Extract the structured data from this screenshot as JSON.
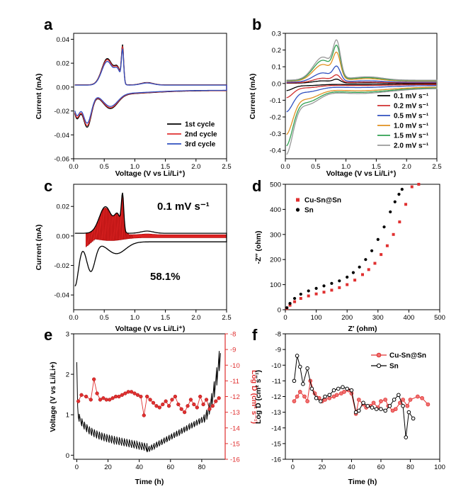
{
  "chart_data": [
    {
      "id": "a",
      "type": "line",
      "panel_label": "a",
      "xlabel": "Voltage (V vs Li/Li⁺)",
      "ylabel": "Current (mA)",
      "xlim": [
        0,
        2.5
      ],
      "ylim": [
        -0.06,
        0.045
      ],
      "xticks": [
        "0.0",
        "0.5",
        "1.0",
        "1.5",
        "2.0",
        "2.5"
      ],
      "yticks": [
        "-0.06",
        "-0.04",
        "-0.02",
        "0.00",
        "0.02",
        "0.04"
      ],
      "legend": "bottom-right",
      "series": [
        {
          "name": "1st cycle",
          "color": "#000000",
          "scale": 1.0
        },
        {
          "name": "2nd cycle",
          "color": "#e03030",
          "scale": 0.96
        },
        {
          "name": "3rd cycle",
          "color": "#3050c0",
          "scale": 0.9
        }
      ]
    },
    {
      "id": "b",
      "type": "line",
      "panel_label": "b",
      "xlabel": "Voltage (V vs Li/Li⁺)",
      "ylabel": "Current (mA)",
      "xlim": [
        0,
        2.5
      ],
      "ylim": [
        -0.45,
        0.3
      ],
      "xticks": [
        "0.0",
        "0.5",
        "1.0",
        "1.5",
        "2.0",
        "2.5"
      ],
      "yticks": [
        "-0.4",
        "-0.3",
        "-0.2",
        "-0.1",
        "0.0",
        "0.1",
        "0.2",
        "0.3"
      ],
      "legend": "bottom-right",
      "series": [
        {
          "name": "0.1 mV s⁻¹",
          "color": "#000000",
          "peak": 0.025
        },
        {
          "name": "0.2 mV s⁻¹",
          "color": "#d03030",
          "peak": 0.05
        },
        {
          "name": "0.5 mV s⁻¹",
          "color": "#3050c0",
          "peak": 0.1
        },
        {
          "name": "1.0 mV s⁻¹",
          "color": "#e09020",
          "peak": 0.18
        },
        {
          "name": "1.5 mV s⁻¹",
          "color": "#30a050",
          "peak": 0.22
        },
        {
          "name": "2.0 mV s⁻¹",
          "color": "#999999",
          "peak": 0.25
        }
      ]
    },
    {
      "id": "c",
      "type": "area",
      "panel_label": "c",
      "xlabel": "Voltage (V vs Li/Li⁺)",
      "ylabel": "Current (mA)",
      "xlim": [
        0,
        2.5
      ],
      "ylim": [
        -0.05,
        0.035
      ],
      "xticks": [
        "0.0",
        "0.5",
        "1.0",
        "1.5",
        "2.0",
        "2.5"
      ],
      "yticks": [
        "-0.04",
        "-0.02",
        "0.00",
        "0.02"
      ],
      "annotations": [
        "0.1 mV s⁻¹",
        "58.1%"
      ],
      "fill_color": "#dd2222",
      "capacitive_fraction": 58.1
    },
    {
      "id": "d",
      "type": "scatter",
      "panel_label": "d",
      "xlabel": "Z′ (ohm)",
      "ylabel": "-Z″ (ohm)",
      "xlim": [
        0,
        500
      ],
      "ylim": [
        0,
        500
      ],
      "xticks": [
        "0",
        "100",
        "200",
        "300",
        "400",
        "500"
      ],
      "yticks": [
        "0",
        "100",
        "200",
        "300",
        "400",
        "500"
      ],
      "legend": "top-left",
      "series": [
        {
          "name": "Cu-Sn@Sn",
          "color": "#e03030",
          "marker": "square",
          "x": [
            5,
            15,
            30,
            50,
            75,
            100,
            125,
            150,
            175,
            200,
            225,
            250,
            270,
            290,
            310,
            330,
            350,
            370,
            390,
            410,
            432
          ],
          "y": [
            5,
            18,
            32,
            45,
            55,
            63,
            70,
            78,
            88,
            100,
            118,
            140,
            160,
            185,
            220,
            255,
            300,
            350,
            420,
            490,
            500
          ]
        },
        {
          "name": "Sn",
          "color": "#000000",
          "marker": "circle",
          "x": [
            5,
            15,
            30,
            50,
            75,
            100,
            125,
            150,
            175,
            200,
            220,
            240,
            260,
            280,
            300,
            320,
            340,
            355,
            368,
            378
          ],
          "y": [
            8,
            25,
            45,
            62,
            75,
            85,
            95,
            105,
            115,
            130,
            148,
            170,
            200,
            235,
            280,
            330,
            390,
            430,
            460,
            480
          ]
        }
      ]
    },
    {
      "id": "e",
      "type": "line",
      "panel_label": "e",
      "xlabel": "Time (h)",
      "ylabel": "Voltage (V vs Li/Li+)",
      "ylabel_right": "Log D (cm² s⁻¹)",
      "xlim": [
        -2,
        95
      ],
      "ylim": [
        -0.1,
        3
      ],
      "ylim_right": [
        -16,
        -8
      ],
      "xticks": [
        "0",
        "20",
        "40",
        "60",
        "80"
      ],
      "yticks": [
        "0",
        "1",
        "2",
        "3"
      ],
      "yticks_right": [
        "-8",
        "-9",
        "-10",
        "-11",
        "-12",
        "-13",
        "-14",
        "-15",
        "-16"
      ],
      "right_axis_color": "#e03030",
      "voltage_series": {
        "name": "Voltage",
        "color": "#000000"
      },
      "logd_series": {
        "name": "Log D",
        "color": "#e03030",
        "x": [
          1,
          3,
          6,
          9,
          11,
          13,
          15,
          17,
          19,
          21,
          23,
          25,
          27,
          29,
          31,
          33,
          35,
          37,
          39,
          41,
          43,
          45,
          47,
          49,
          51,
          53,
          55,
          57,
          59,
          61,
          63,
          65,
          67,
          69,
          71,
          73,
          75,
          77,
          79,
          81,
          83,
          85,
          87,
          89,
          91
        ],
        "y": [
          -12.3,
          -11.9,
          -12.0,
          -12.2,
          -10.9,
          -11.8,
          -12.2,
          -12.1,
          -12.2,
          -12.2,
          -12.1,
          -12.0,
          -12.0,
          -11.9,
          -11.8,
          -11.7,
          -11.7,
          -11.8,
          -11.9,
          -12.0,
          -13.2,
          -12.0,
          -12.2,
          -12.4,
          -12.6,
          -12.7,
          -12.5,
          -12.3,
          -12.6,
          -12.2,
          -12.0,
          -12.5,
          -12.8,
          -13.0,
          -12.6,
          -12.2,
          -12.5,
          -12.7,
          -12.0,
          -12.5,
          -12.2,
          -12.8,
          -12.6,
          -12.3,
          -12.1
        ]
      }
    },
    {
      "id": "f",
      "type": "line",
      "panel_label": "f",
      "xlabel": "Time (h)",
      "ylabel": "Log D (cm² s⁻¹)",
      "xlim": [
        -5,
        100
      ],
      "ylim": [
        -16,
        -8
      ],
      "xticks": [
        "0",
        "20",
        "40",
        "60",
        "80",
        "100"
      ],
      "yticks": [
        "-8",
        "-9",
        "-10",
        "-11",
        "-12",
        "-13",
        "-14",
        "-15",
        "-16"
      ],
      "legend": "top-right",
      "series": [
        {
          "name": "Cu-Sn@Sn",
          "color": "#e03030",
          "marker": "circle",
          "x": [
            1,
            3,
            5,
            8,
            10,
            12,
            15,
            18,
            20,
            22,
            25,
            28,
            30,
            33,
            35,
            38,
            40,
            43,
            45,
            48,
            50,
            53,
            55,
            58,
            60,
            63,
            65,
            68,
            70,
            73,
            75,
            78,
            80,
            85,
            88,
            92
          ],
          "y": [
            -12.3,
            -12.0,
            -11.7,
            -12.0,
            -12.3,
            -11.0,
            -11.8,
            -12.1,
            -12.3,
            -12.2,
            -12.1,
            -12.0,
            -11.9,
            -11.8,
            -11.7,
            -11.6,
            -11.8,
            -13.1,
            -12.2,
            -12.5,
            -12.7,
            -12.6,
            -12.4,
            -12.7,
            -12.3,
            -12.2,
            -12.6,
            -12.9,
            -12.8,
            -12.4,
            -12.2,
            -12.6,
            -12.2,
            -12.0,
            -12.1,
            -12.5
          ]
        },
        {
          "name": "Sn",
          "color": "#000000",
          "marker": "circle",
          "x": [
            1,
            3,
            5,
            7,
            10,
            13,
            16,
            19,
            22,
            25,
            28,
            31,
            34,
            37,
            40,
            43,
            45,
            48,
            51,
            54,
            57,
            60,
            63,
            66,
            69,
            72,
            75,
            77,
            79,
            82
          ],
          "y": [
            -11.0,
            -9.4,
            -10.1,
            -11.2,
            -10.2,
            -11.5,
            -12.1,
            -12.3,
            -12.0,
            -11.9,
            -11.6,
            -11.5,
            -11.4,
            -11.5,
            -11.6,
            -13.0,
            -12.9,
            -12.4,
            -12.6,
            -12.7,
            -12.8,
            -12.8,
            -12.9,
            -12.6,
            -12.2,
            -11.9,
            -12.6,
            -14.6,
            -13.0,
            -13.4
          ]
        }
      ]
    }
  ]
}
